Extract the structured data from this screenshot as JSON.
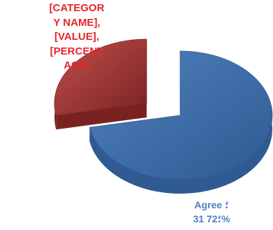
{
  "chart_data": {
    "type": "pie",
    "style": "3d-exploded",
    "slices": [
      {
        "label_line1": "Agree ؛",
        "label_line2": "31 ؛72%",
        "value": 31,
        "percent": 72,
        "color": "#4f81bd",
        "side_color": "#2f5a92"
      },
      {
        "label_text": "[CATEGORY NAME], [VALUE], [PERCENTAGE]",
        "percent": 28,
        "color": "#c0504d",
        "side_color": "#7a2222"
      }
    ],
    "label_colors": {
      "agree": "#4f7fbf",
      "placeholder": "#e8242a"
    }
  }
}
